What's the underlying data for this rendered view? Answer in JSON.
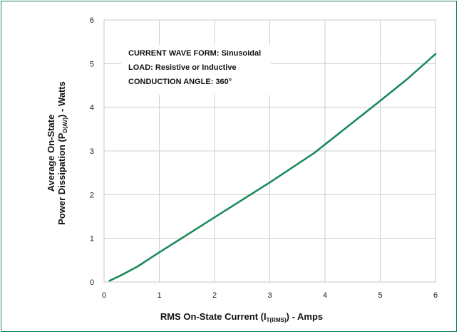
{
  "chart_data": {
    "type": "line",
    "xlabel_main": "RMS On-State Current (I",
    "xlabel_sub": "T(RMS)",
    "xlabel_tail": ") - Amps",
    "ylabel_line1": "Average On-State",
    "ylabel_line2_main": "Power Dissipation (P",
    "ylabel_line2_sub": "D(AV)",
    "ylabel_line2_tail": ") - Watts",
    "xlim": [
      0,
      6
    ],
    "ylim": [
      0,
      6
    ],
    "x_ticks": [
      "0",
      "1",
      "2",
      "3",
      "4",
      "5",
      "6"
    ],
    "y_ticks": [
      "0",
      "1",
      "2",
      "3",
      "4",
      "5",
      "6"
    ],
    "grid": true,
    "line_color": "#1b8a5a",
    "annotations": [
      "CURRENT WAVE FORM: Sinusoidal",
      "LOAD: Resistive or Inductive",
      "CONDUCTION ANGLE: 360°"
    ],
    "series": [
      {
        "x": [
          0.1,
          0.3,
          0.6,
          1.0,
          1.5,
          2.0,
          2.5,
          3.0,
          3.5,
          3.8,
          4.0,
          4.5,
          5.0,
          5.5,
          6.0
        ],
        "y": [
          0.03,
          0.15,
          0.35,
          0.68,
          1.08,
          1.48,
          1.88,
          2.28,
          2.7,
          2.95,
          3.15,
          3.65,
          4.15,
          4.66,
          5.22
        ]
      }
    ]
  }
}
